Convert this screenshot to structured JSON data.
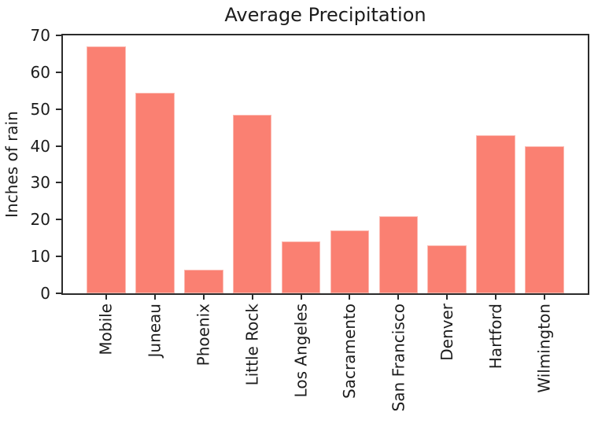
{
  "figure": {
    "background": "#ffffff"
  },
  "chart_data": {
    "type": "bar",
    "title": "Average Precipitation",
    "ylabel": "Inches of rain",
    "xlabel": "",
    "categories": [
      "Mobile",
      "Juneau",
      "Phoenix",
      "Little Rock",
      "Los Angeles",
      "Sacramento",
      "San Francisco",
      "Denver",
      "Hartford",
      "Wilmington"
    ],
    "values": [
      67,
      54.5,
      6.5,
      48.5,
      14,
      17,
      21,
      13,
      43,
      40
    ],
    "ylim": [
      0,
      70
    ],
    "yticks": [
      0,
      10,
      20,
      30,
      40,
      50,
      60,
      70
    ],
    "x_tick_rotation": 90,
    "grid": false,
    "legend": "none",
    "bar_color": "#fa8072",
    "axis_color": "#2b2b2b",
    "text_color": "#1c1c1c"
  }
}
